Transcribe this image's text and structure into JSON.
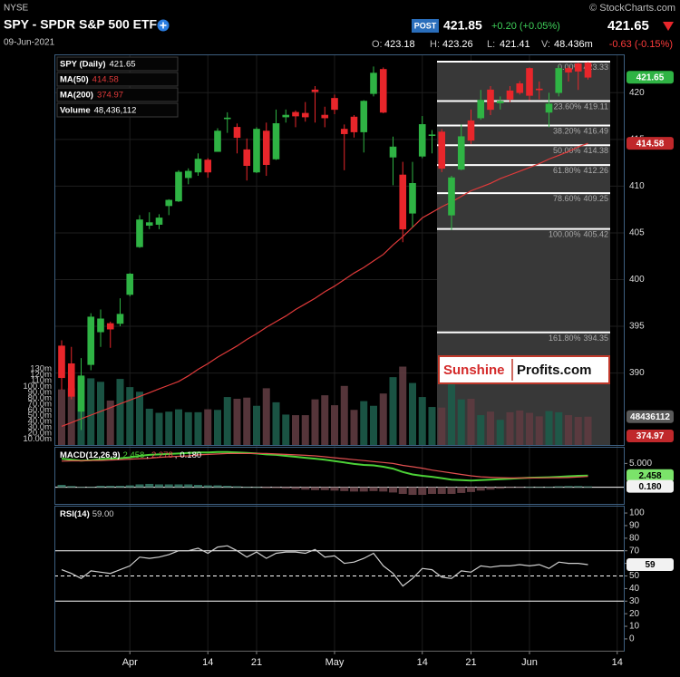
{
  "header": {
    "exchange": "NYSE",
    "title": "SPY - SPDR S&P 500 ETF",
    "date": "09-Jun-2021",
    "copyright": "© StockCharts.com",
    "post_badge": "POST",
    "post_price": 421.85,
    "post_change": "+0.20 (+0.05%)",
    "last": 421.65,
    "ohlc": [
      {
        "label": "O:",
        "value": 423.18
      },
      {
        "label": "H:",
        "value": 423.26
      },
      {
        "label": "L:",
        "value": 421.41
      },
      {
        "label": "V:",
        "value": "48.436m"
      }
    ],
    "change": "-0.63 (-0.15%)"
  },
  "chart_data": [
    {
      "type": "candlestick",
      "title": "SPY (Daily)",
      "readout": 421.65,
      "up_color": "#2fb344",
      "down_color": "#e8262b",
      "ylim": [
        382.3,
        424.1
      ],
      "yticks": [
        390,
        395,
        400,
        405,
        410,
        415,
        420
      ],
      "grid": true,
      "open": [
        392.9,
        391.0,
        385.9,
        390.9,
        394.4,
        395.3,
        395.3,
        398.4,
        403.5,
        405.8,
        405.9,
        407.9,
        408.4,
        410.9,
        411.5,
        412.8,
        413.7,
        417.25,
        416.3,
        413.9,
        411.5,
        415.9,
        412.9,
        417.4,
        417.9,
        417.8,
        420.3,
        417.6,
        419.4,
        416.1,
        417.4,
        415.8,
        419.9,
        422.5,
        413.1,
        411.2,
        407.1,
        413.2,
        415.4,
        415.8,
        406.9,
        411.8,
        417.0,
        417.3,
        420.3,
        418.9,
        420.2,
        420.97,
        422.6,
        420.4,
        417.9,
        420.0,
        422.6,
        423.1,
        423.18,
        null,
        null,
        null
      ],
      "high": [
        393.5,
        392.8,
        391.6,
        396.4,
        396.8,
        395.5,
        398.0,
        400.7,
        406.9,
        407.2,
        407.0,
        408.6,
        411.7,
        411.9,
        413.5,
        413.0,
        416.2,
        417.9,
        416.7,
        415.1,
        416.3,
        416.8,
        418.2,
        418.2,
        418.1,
        419.0,
        420.7,
        418.5,
        419.8,
        416.6,
        417.6,
        419.2,
        422.8,
        422.7,
        415.3,
        412.6,
        412.6,
        417.5,
        416.0,
        416.1,
        411.1,
        416.6,
        418.2,
        420.3,
        420.7,
        419.6,
        420.7,
        421.25,
        422.7,
        421.2,
        419.99,
        422.9,
        422.8,
        423.2,
        423.26,
        null,
        null,
        null
      ],
      "low": [
        388.2,
        387.2,
        383.9,
        390.3,
        392.8,
        392.7,
        395.0,
        398.2,
        403.4,
        405.4,
        405.4,
        406.9,
        408.3,
        410.2,
        411.1,
        410.9,
        413.7,
        415.7,
        413.5,
        410.6,
        411.4,
        411.1,
        412.8,
        416.8,
        416.3,
        416.9,
        416.8,
        416.3,
        417.7,
        411.7,
        415.2,
        413.6,
        419.6,
        417.8,
        410.1,
        404.0,
        405.6,
        413.0,
        413.5,
        411.5,
        405.3,
        411.7,
        414.5,
        417.1,
        417.6,
        418.2,
        418.99,
        419.8,
        419.2,
        419.3,
        416.3,
        419.6,
        421.2,
        420.3,
        421.41,
        null,
        null,
        null
      ],
      "close": [
        389.5,
        387.5,
        389.7,
        396.0,
        395.8,
        394.7,
        396.3,
        400.6,
        406.4,
        406.1,
        406.6,
        408.5,
        411.5,
        411.6,
        412.9,
        411.5,
        415.9,
        417.3,
        415.2,
        412.2,
        416.1,
        412.3,
        416.7,
        417.6,
        417.5,
        417.4,
        420.1,
        417.3,
        418.2,
        415.6,
        415.8,
        419.1,
        422.1,
        417.9,
        414.2,
        405.4,
        410.3,
        416.6,
        415.5,
        411.9,
        410.9,
        415.3,
        414.9,
        419.2,
        418.2,
        419.1,
        419.3,
        420.0,
        419.7,
        420.3,
        418.8,
        422.6,
        422.2,
        422.3,
        421.65,
        null,
        null,
        null
      ],
      "overlays": [
        {
          "name": "MA(50)",
          "color": "#e03a3a",
          "readout": 414.58,
          "values": [
            384.3,
            384.7,
            385.1,
            385.5,
            385.9,
            386.3,
            386.7,
            387.1,
            387.5,
            387.9,
            388.3,
            388.7,
            389.1,
            389.7,
            390.4,
            391.0,
            391.7,
            392.3,
            392.9,
            393.6,
            394.2,
            394.9,
            395.5,
            396.1,
            396.8,
            397.4,
            398.0,
            398.7,
            399.3,
            400.0,
            400.7,
            401.3,
            402.0,
            402.7,
            403.7,
            404.6,
            405.6,
            406.6,
            407.2,
            407.8,
            408.3,
            408.9,
            409.5,
            409.9,
            410.3,
            410.8,
            411.2,
            411.6,
            412.0,
            412.4,
            412.9,
            413.3,
            413.7,
            414.2,
            414.58,
            null,
            null,
            null
          ]
        },
        {
          "name": "MA(200)",
          "color": "#e03a3a",
          "readout": 374.97
        }
      ],
      "volume": {
        "name": "Volume",
        "readout_label": "48,436,112",
        "tag_label": "48436112",
        "up_color": "#1d5c4a",
        "down_color": "#5e3b40",
        "ylim": [
          0,
          141
        ],
        "yticks": [
          {
            "value": 130,
            "label": "130m"
          },
          {
            "value": 120,
            "label": "120m"
          },
          {
            "value": 110,
            "label": "110m"
          },
          {
            "value": 100,
            "label": "100.0m"
          },
          {
            "value": 90,
            "label": "90.0m"
          },
          {
            "value": 80,
            "label": "80.0m"
          },
          {
            "value": 70,
            "label": "70.0m"
          },
          {
            "value": 60,
            "label": "60.0m"
          },
          {
            "value": 50,
            "label": "50.0m"
          },
          {
            "value": 40,
            "label": "40.0m"
          },
          {
            "value": 30,
            "label": "30.0m"
          },
          {
            "value": 20,
            "label": "20.0m"
          },
          {
            "value": 10,
            "label": "10.00m"
          }
        ],
        "values": [
          95,
          97,
          116,
          114,
          108,
          76,
          113,
          99,
          91,
          62,
          55,
          57,
          61,
          56,
          56,
          61,
          60,
          82,
          79,
          81,
          67,
          97,
          73,
          52,
          51,
          51,
          78,
          85,
          68,
          101,
          60,
          75,
          67,
          88,
          116,
          134,
          106,
          82,
          65,
          64,
          106,
          78,
          79,
          51,
          57,
          43,
          56,
          59,
          55,
          49,
          58,
          56,
          51,
          48,
          48.436112,
          null,
          null,
          null
        ]
      },
      "fib_levels": [
        {
          "label": "0.00%",
          "value": 423.33
        },
        {
          "label": "23.60%",
          "value": 419.11
        },
        {
          "label": "38.20%",
          "value": 416.49
        },
        {
          "label": "50.00%",
          "value": 414.38
        },
        {
          "label": "61.80%",
          "value": 412.26
        },
        {
          "label": "78.60%",
          "value": 409.25
        },
        {
          "label": "100.00%",
          "value": 405.42
        },
        {
          "label": "161.80%",
          "value": 394.35
        }
      ],
      "watermark": [
        "Sunshine",
        "Profits.com"
      ]
    },
    {
      "type": "line",
      "indicator": "MACD(12,26,9)",
      "separator": ",",
      "ylim": [
        -3.5,
        8.5
      ],
      "yticks": [
        {
          "value": 5,
          "label": "5.000"
        }
      ],
      "reference_lines": [
        {
          "value": 0,
          "style": "solid"
        }
      ],
      "series": [
        {
          "color": "#4cd137",
          "tag": true,
          "readout": 2.458,
          "values": [
            6.0,
            5.8,
            5.6,
            5.7,
            5.9,
            6.0,
            6.1,
            6.3,
            6.6,
            6.8,
            6.9,
            7.0,
            7.1,
            7.2,
            7.3,
            7.3,
            7.4,
            7.4,
            7.3,
            7.2,
            7.1,
            6.9,
            6.8,
            6.6,
            6.4,
            6.2,
            6.0,
            5.8,
            5.5,
            5.2,
            4.9,
            4.7,
            4.6,
            4.3,
            3.9,
            3.2,
            2.7,
            2.4,
            2.2,
            1.9,
            1.6,
            1.5,
            1.4,
            1.5,
            1.6,
            1.7,
            1.8,
            1.9,
            2.0,
            2.05,
            2.1,
            2.2,
            2.3,
            2.4,
            2.458,
            null,
            null,
            null
          ]
        },
        {
          "color": "#e05050",
          "readout": 2.278,
          "values": [
            5.5,
            5.55,
            5.55,
            5.6,
            5.6,
            5.7,
            5.8,
            5.9,
            6.0,
            6.1,
            6.3,
            6.4,
            6.5,
            6.6,
            6.8,
            6.9,
            7.0,
            7.1,
            7.1,
            7.1,
            7.1,
            7.1,
            7.0,
            6.9,
            6.8,
            6.7,
            6.6,
            6.4,
            6.2,
            6.0,
            5.8,
            5.6,
            5.4,
            5.2,
            5.0,
            4.6,
            4.3,
            4.0,
            3.6,
            3.3,
            3.0,
            2.7,
            2.4,
            2.2,
            2.1,
            2.0,
            1.95,
            1.95,
            1.95,
            1.96,
            1.98,
            2.0,
            2.05,
            2.15,
            2.278,
            null,
            null,
            null
          ]
        },
        {
          "color": "#2e6b5a",
          "style": "bar",
          "tag": true,
          "readout": {
            "value": 0.18,
            "label": "0.180"
          },
          "values": [
            0.5,
            0.25,
            0.05,
            0.1,
            0.3,
            0.3,
            0.3,
            0.4,
            0.6,
            0.7,
            0.6,
            0.6,
            0.6,
            0.6,
            0.5,
            0.4,
            0.4,
            0.3,
            0.2,
            0.1,
            0,
            -0.2,
            -0.2,
            -0.3,
            -0.4,
            -0.5,
            -0.6,
            -0.6,
            -0.7,
            -0.8,
            -0.9,
            -0.9,
            -0.8,
            -0.9,
            -1.1,
            -1.4,
            -1.6,
            -1.6,
            -1.4,
            -1.4,
            -1.4,
            -1.2,
            -1.0,
            -0.7,
            -0.5,
            -0.3,
            -0.15,
            -0.05,
            0.05,
            0.09,
            0.12,
            0.2,
            0.25,
            0.25,
            0.18,
            null,
            null,
            null
          ]
        }
      ]
    },
    {
      "type": "line",
      "indicator": "RSI(14)",
      "ylim": [
        -9.4,
        105.8
      ],
      "yticks": [
        0,
        10,
        20,
        30,
        40,
        50,
        60,
        70,
        80,
        90,
        100
      ],
      "reference_lines": [
        {
          "value": 70,
          "style": "solid"
        },
        {
          "value": 50,
          "style": "dashed"
        },
        {
          "value": 30,
          "style": "solid"
        }
      ],
      "series": [
        {
          "color": "#cfcfcf",
          "tag": true,
          "readout": {
            "value": 59,
            "label": "59.00"
          },
          "values": [
            55,
            52,
            48,
            54,
            53,
            52,
            55,
            58,
            65,
            64,
            65,
            67,
            70,
            70,
            72,
            68,
            73,
            74,
            70,
            65,
            69,
            64,
            68,
            69,
            69,
            68,
            71,
            65,
            66,
            60,
            61,
            64,
            68,
            58,
            52,
            42,
            48,
            56,
            55,
            49,
            48,
            54,
            53,
            58,
            57,
            58,
            58,
            59,
            58,
            59,
            56,
            61,
            60,
            60,
            59,
            null,
            null,
            null
          ]
        }
      ],
      "categories": [
        null,
        null,
        null,
        null,
        null,
        null,
        null,
        "Apr",
        null,
        null,
        null,
        null,
        null,
        null,
        null,
        "14",
        null,
        null,
        null,
        null,
        "21",
        null,
        null,
        null,
        null,
        null,
        null,
        null,
        "May",
        null,
        null,
        null,
        null,
        null,
        null,
        null,
        null,
        "14",
        null,
        null,
        null,
        null,
        "21",
        null,
        null,
        null,
        null,
        null,
        "Jun",
        null,
        null,
        null,
        null,
        null,
        null,
        null,
        null,
        "14"
      ]
    }
  ]
}
